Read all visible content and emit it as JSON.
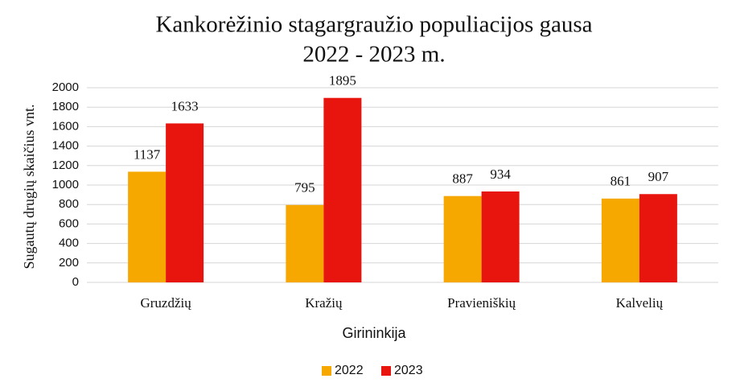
{
  "chart_data": {
    "type": "bar",
    "title": "Kankorėžinio stagargraužio populiacijos gausa",
    "subtitle": "2022 - 2023 m.",
    "y_label": "Sugautų drugių skaičius vnt.",
    "x_label": "Girininkija",
    "categories": [
      "Gruzdžių",
      "Kražių",
      "Pravieniškių",
      "Kalvelių"
    ],
    "series": [
      {
        "name": "2022",
        "color": "#f7a800",
        "values": [
          1137,
          795,
          887,
          861
        ]
      },
      {
        "name": "2023",
        "color": "#e8140e",
        "values": [
          1633,
          1895,
          934,
          907
        ]
      }
    ],
    "ylim": [
      0,
      2000
    ],
    "yticks": [
      0,
      200,
      400,
      600,
      800,
      1000,
      1200,
      1400,
      1600,
      1800,
      2000
    ],
    "grid": true,
    "legend": "bottom"
  }
}
